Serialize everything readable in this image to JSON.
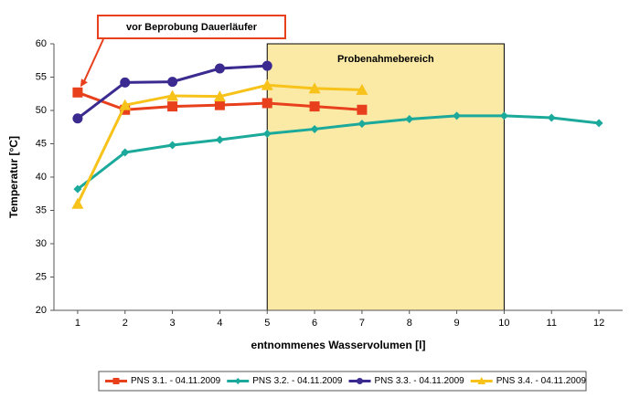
{
  "chart_data": {
    "type": "line",
    "xlabel": "entnommenes Wasservolumen [l]",
    "ylabel": "Temperatur [°C]",
    "xlim": [
      0.5,
      12.5
    ],
    "xticks": [
      1,
      2,
      3,
      4,
      5,
      6,
      7,
      8,
      9,
      10,
      11,
      12
    ],
    "ylim": [
      20,
      60
    ],
    "yticks": [
      20,
      25,
      30,
      35,
      40,
      45,
      50,
      55,
      60
    ],
    "grid": false,
    "legend": "bottom",
    "highlight": {
      "x": [
        5,
        10
      ],
      "label": "Probenahmebereich",
      "color": "#fbe9a6"
    },
    "annotation": {
      "text": "vor Beprobung Dauerläufer",
      "x": 1,
      "y": 52.7,
      "color": "#e8401c"
    },
    "series": [
      {
        "name": "PNS 3.1. - 04.11.2009",
        "color": "#e8401c",
        "marker": "square",
        "x": [
          1,
          2,
          3,
          4,
          5,
          6,
          7
        ],
        "values": [
          52.7,
          50.1,
          50.6,
          50.8,
          51.1,
          50.6,
          50.1
        ]
      },
      {
        "name": "PNS 3.2. - 04.11.2009",
        "color": "#1aa99a",
        "marker": "diamond",
        "x": [
          1,
          2,
          3,
          4,
          5,
          6,
          7,
          8,
          9,
          10,
          11,
          12
        ],
        "values": [
          38.2,
          43.7,
          44.8,
          45.6,
          46.5,
          47.2,
          48.0,
          48.7,
          49.2,
          49.2,
          48.9,
          48.1
        ]
      },
      {
        "name": "PNS 3.3. - 04.11.2009",
        "color": "#3b2a8f",
        "marker": "circle",
        "x": [
          1,
          2,
          3,
          4,
          5
        ],
        "values": [
          48.8,
          54.2,
          54.3,
          56.3,
          56.7
        ]
      },
      {
        "name": "PNS 3.4. - 04.11.2009",
        "color": "#f7c21a",
        "marker": "triangle",
        "x": [
          1,
          2,
          3,
          4,
          5,
          6,
          7
        ],
        "values": [
          36.0,
          50.8,
          52.2,
          52.1,
          53.8,
          53.3,
          53.1
        ]
      }
    ]
  }
}
